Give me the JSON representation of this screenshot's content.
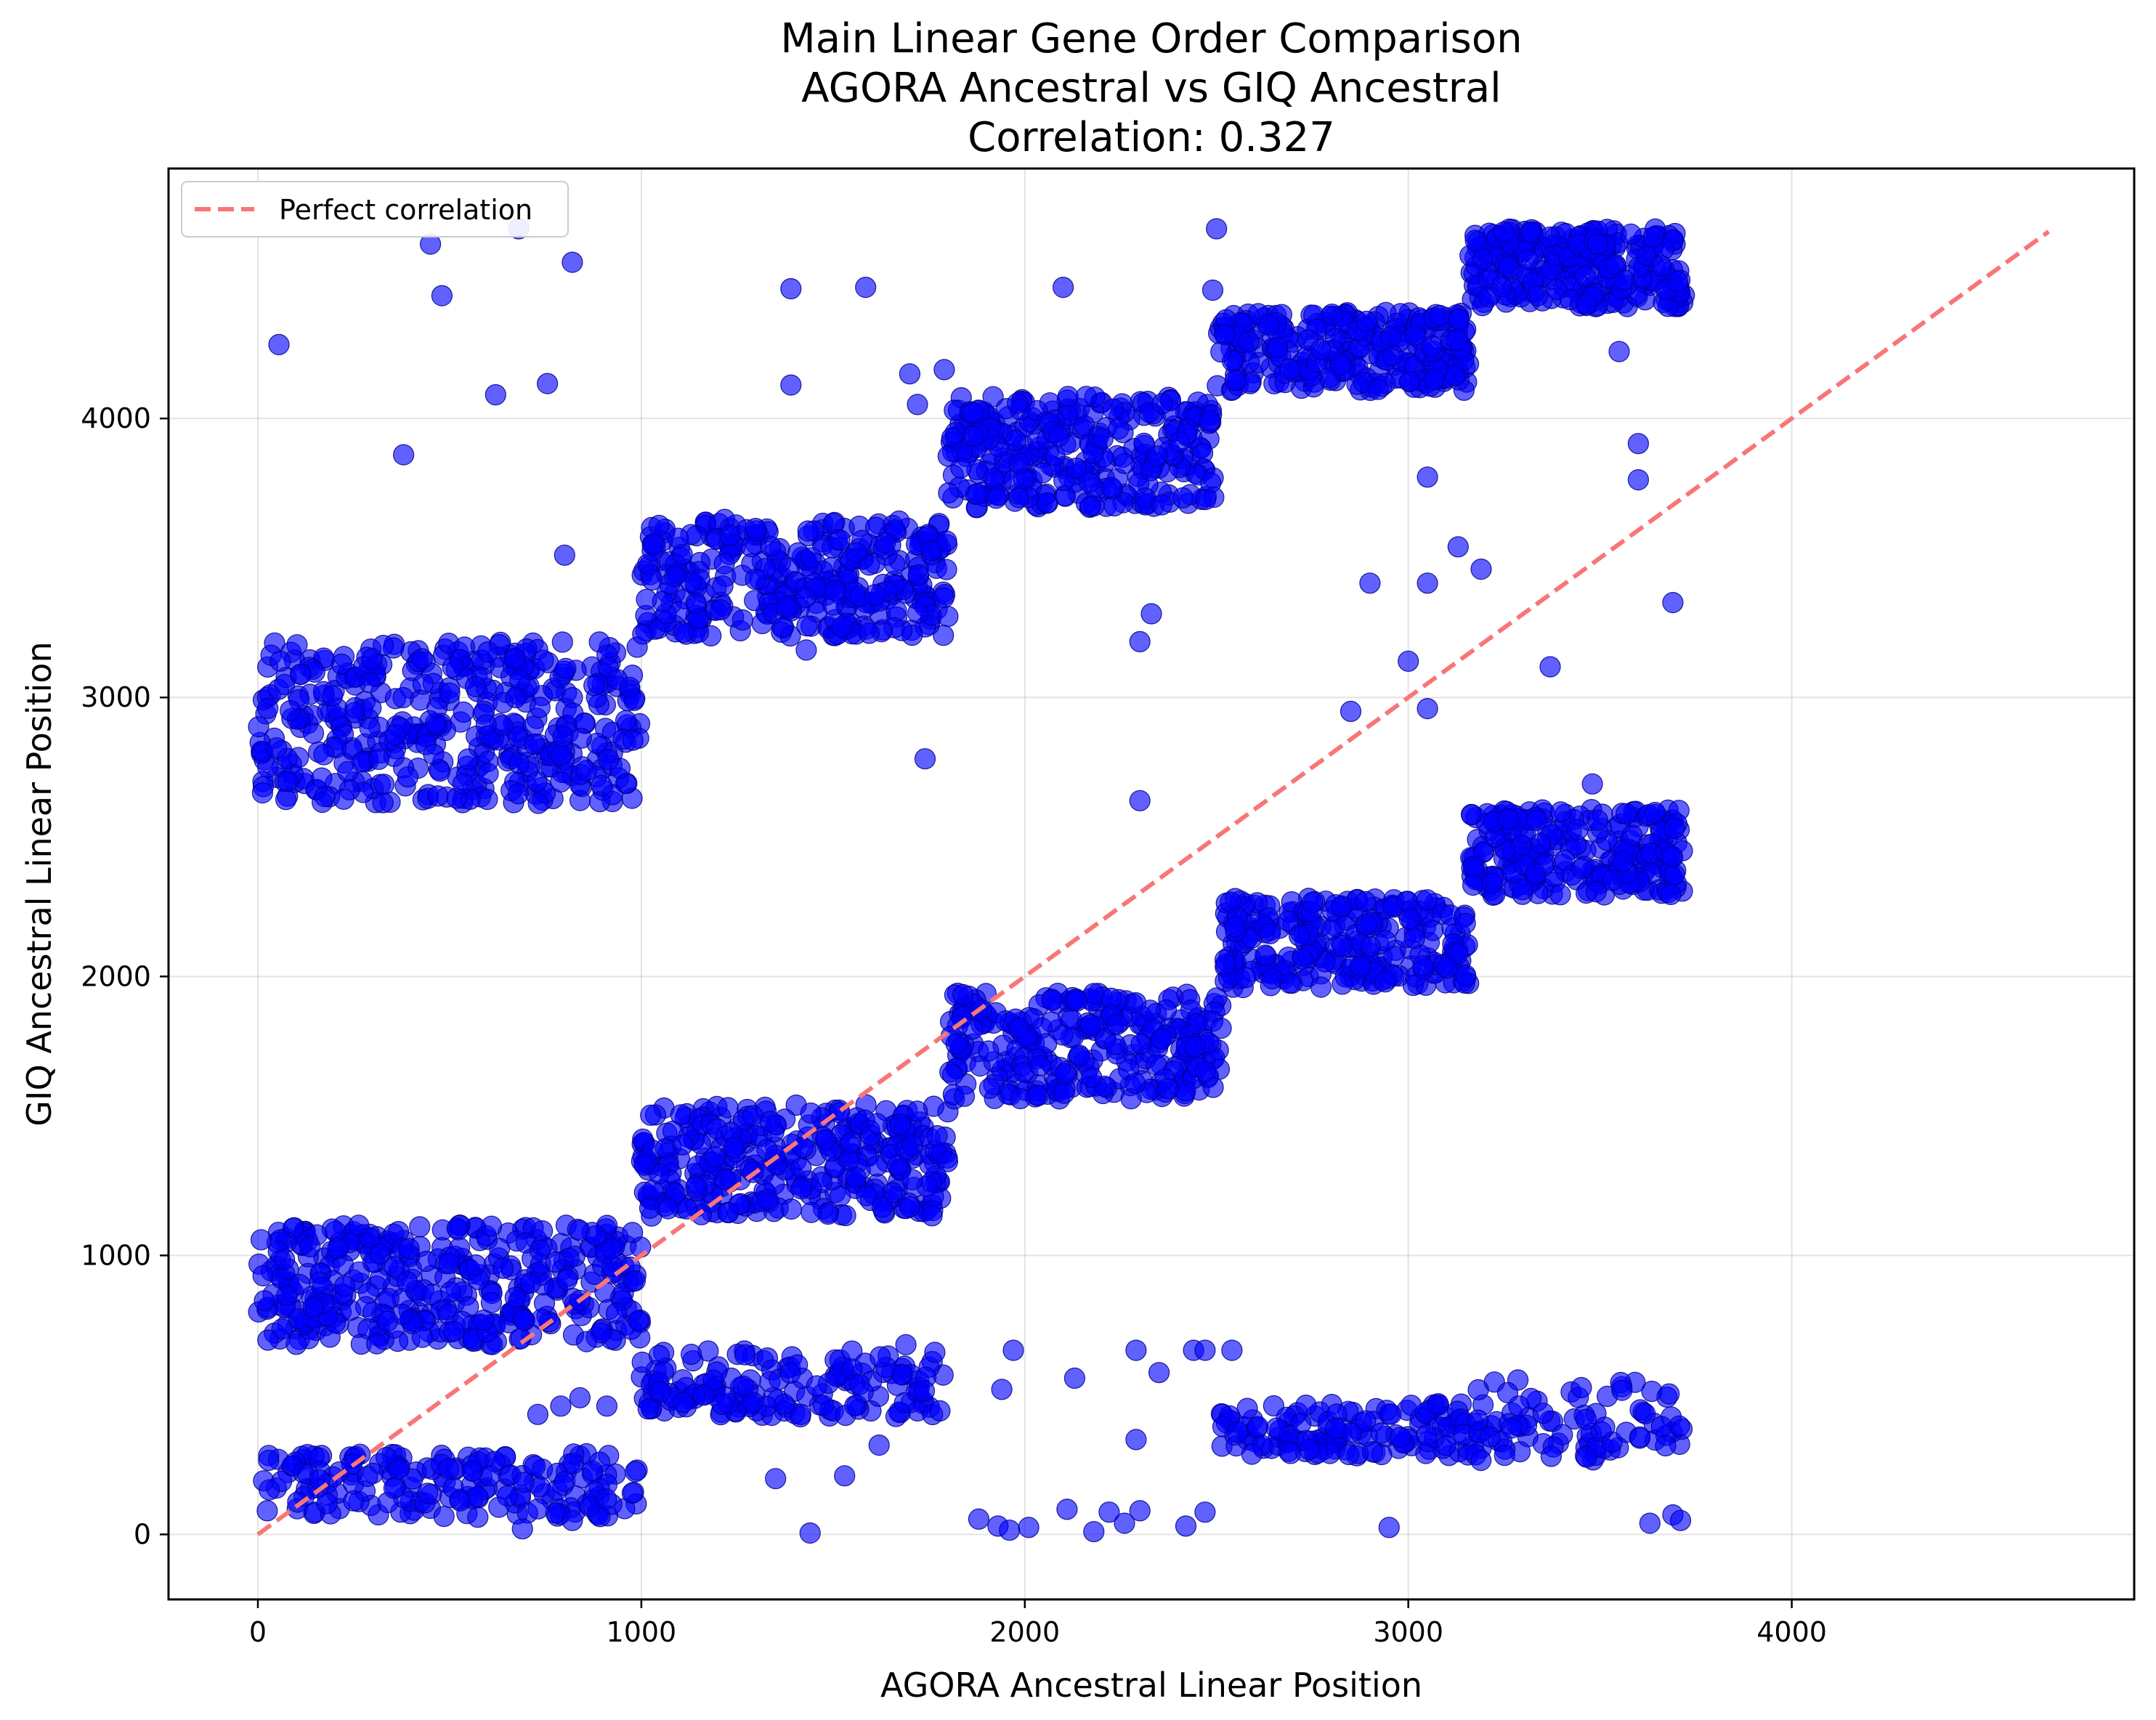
{
  "chart_data": {
    "type": "scatter",
    "title_lines": [
      "Main Linear Gene Order Comparison",
      "AGORA Ancestral vs GIQ Ancestral",
      "Correlation: 0.327"
    ],
    "xlabel": "AGORA Ancestral Linear Position",
    "ylabel": "GIQ Ancestral Linear Position",
    "xlim": [
      -233,
      4893
    ],
    "ylim": [
      -233,
      4896
    ],
    "xticks": [
      0,
      1000,
      2000,
      3000,
      4000
    ],
    "yticks": [
      0,
      1000,
      2000,
      3000,
      4000
    ],
    "grid": true,
    "legend": {
      "placement": "top-left",
      "entries": [
        "Perfect correlation"
      ]
    },
    "reference_line": {
      "name": "Perfect correlation",
      "from": [
        0,
        0
      ],
      "to": [
        4670,
        4670
      ],
      "color": "#f87676",
      "style": "dashed"
    },
    "point_color": "#0000ff",
    "point_edge_color": "#00008b",
    "clusters": [
      {
        "x": [
          0,
          1000
        ],
        "y": [
          2620,
          3200
        ],
        "n": 420
      },
      {
        "x": [
          1000,
          1800
        ],
        "y": [
          3220,
          3640
        ],
        "n": 330
      },
      {
        "x": [
          1800,
          2500
        ],
        "y": [
          3680,
          4080
        ],
        "n": 300
      },
      {
        "x": [
          2500,
          3160
        ],
        "y": [
          4100,
          4380
        ],
        "n": 270
      },
      {
        "x": [
          3160,
          3720
        ],
        "y": [
          4400,
          4680
        ],
        "n": 260
      },
      {
        "x": [
          0,
          1000
        ],
        "y": [
          680,
          1110
        ],
        "n": 380
      },
      {
        "x": [
          1000,
          1800
        ],
        "y": [
          1140,
          1540
        ],
        "n": 320
      },
      {
        "x": [
          1800,
          2520
        ],
        "y": [
          1560,
          1940
        ],
        "n": 280
      },
      {
        "x": [
          2520,
          3160
        ],
        "y": [
          1960,
          2280
        ],
        "n": 260
      },
      {
        "x": [
          3160,
          3720
        ],
        "y": [
          2290,
          2600
        ],
        "n": 240
      },
      {
        "x": [
          0,
          1000
        ],
        "y": [
          60,
          290
        ],
        "n": 180
      },
      {
        "x": [
          1000,
          1800
        ],
        "y": [
          420,
          660
        ],
        "n": 160
      },
      {
        "x": [
          2500,
          3200
        ],
        "y": [
          280,
          470
        ],
        "n": 140
      },
      {
        "x": [
          3180,
          3720
        ],
        "y": [
          260,
          560
        ],
        "n": 80
      }
    ],
    "outliers": [
      [
        55,
        4265
      ],
      [
        450,
        4625
      ],
      [
        480,
        4440
      ],
      [
        680,
        4680
      ],
      [
        820,
        4560
      ],
      [
        620,
        4085
      ],
      [
        755,
        4125
      ],
      [
        380,
        3870
      ],
      [
        800,
        3510
      ],
      [
        1390,
        4465
      ],
      [
        1390,
        4120
      ],
      [
        1585,
        4470
      ],
      [
        1700,
        4160
      ],
      [
        1720,
        4050
      ],
      [
        1790,
        4175
      ],
      [
        2100,
        4470
      ],
      [
        2500,
        4680
      ],
      [
        2490,
        4460
      ],
      [
        1740,
        2780
      ],
      [
        1430,
        3170
      ],
      [
        2300,
        3200
      ],
      [
        2330,
        3300
      ],
      [
        2300,
        2630
      ],
      [
        2850,
        2950
      ],
      [
        2900,
        3410
      ],
      [
        3000,
        3130
      ],
      [
        3050,
        3410
      ],
      [
        3050,
        2960
      ],
      [
        3050,
        3790
      ],
      [
        3130,
        3540
      ],
      [
        3190,
        3460
      ],
      [
        3370,
        3110
      ],
      [
        3480,
        2690
      ],
      [
        3600,
        3910
      ],
      [
        3600,
        3780
      ],
      [
        3690,
        3340
      ],
      [
        3550,
        4240
      ],
      [
        1880,
        55
      ],
      [
        1930,
        30
      ],
      [
        1960,
        15
      ],
      [
        2010,
        25
      ],
      [
        2110,
        90
      ],
      [
        2180,
        10
      ],
      [
        2220,
        80
      ],
      [
        2260,
        40
      ],
      [
        2300,
        85
      ],
      [
        2420,
        30
      ],
      [
        2470,
        80
      ],
      [
        1440,
        5
      ],
      [
        1350,
        200
      ],
      [
        1530,
        210
      ],
      [
        1620,
        320
      ],
      [
        1690,
        680
      ],
      [
        1940,
        520
      ],
      [
        1970,
        660
      ],
      [
        2130,
        560
      ],
      [
        2290,
        660
      ],
      [
        2290,
        340
      ],
      [
        2350,
        580
      ],
      [
        2440,
        660
      ],
      [
        2470,
        660
      ],
      [
        2540,
        660
      ],
      [
        2950,
        25
      ],
      [
        3630,
        40
      ],
      [
        3690,
        70
      ],
      [
        3710,
        50
      ],
      [
        690,
        20
      ],
      [
        820,
        50
      ],
      [
        730,
        430
      ],
      [
        790,
        460
      ],
      [
        840,
        490
      ],
      [
        910,
        460
      ]
    ]
  }
}
